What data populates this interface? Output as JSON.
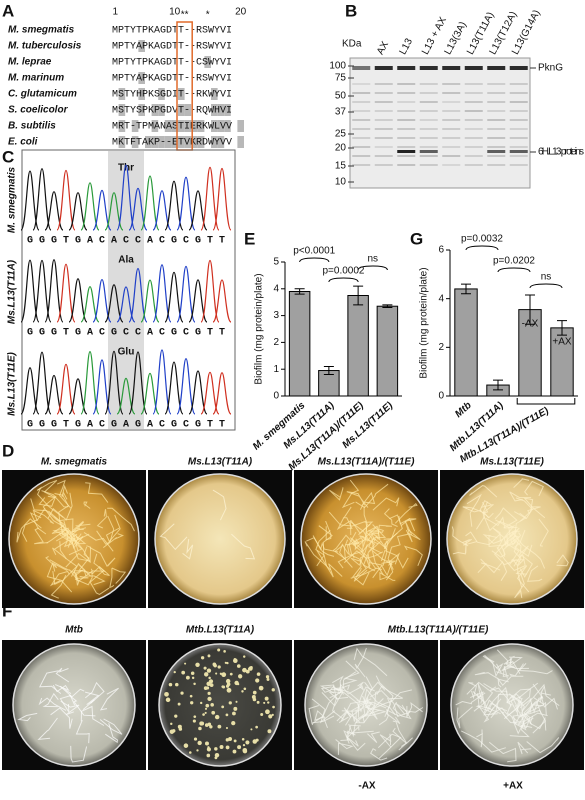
{
  "panel_labels": [
    "A",
    "B",
    "C",
    "D",
    "E",
    "F",
    "G"
  ],
  "alignment": {
    "positions": [
      "1",
      "10",
      "20"
    ],
    "stars": [
      "**",
      "*"
    ],
    "species": [
      "M. smegmatis",
      "M. tuberculosis",
      "M. leprae",
      "M. marinum",
      "C. glutamicum",
      "S. coelicolor",
      "B. subtilis",
      "E. coli"
    ],
    "sequences": [
      "MPTYTPKAGDTT--RSWYVI",
      "MPTYAPKAGDTT--RSWYVI",
      "MPTYTPKAGDTT--CSWYVI",
      "MPTYAPKAGDTT--RSWYVI",
      "MSTYHPKSGDIT--RKWYVI",
      "MSTYSPKPGDVT--RQWHVI",
      "MRT-TPMANASTIERKWLVV",
      "MKTFTAKP--ETVKRDWYVV"
    ]
  },
  "gel": {
    "unit": "KDa",
    "lanes": [
      "AX",
      "L13",
      "L13 + AX",
      "L13(3A)",
      "L13(T11A)",
      "L13(T12A)",
      "L13(G14A)"
    ],
    "markers": [
      "100",
      "75",
      "50",
      "37",
      "25",
      "20",
      "15",
      "10"
    ],
    "bands": [
      "PknG",
      "6H.L13 proteins"
    ]
  },
  "chromatograms": {
    "strains": [
      "M. smegmatis",
      "Ms.L13(T11A)",
      "Ms.L13(T11E)"
    ],
    "codons": [
      "Thr",
      "Ala",
      "Glu"
    ],
    "sequences": [
      "GGGTGACACCACGCGTT",
      "GGGTGACGCCACGCGTT",
      "GGGTGACGAGACGCGTT"
    ]
  },
  "plates_d": {
    "titles": [
      "M. smegmatis",
      "Ms.L13(T11A)",
      "Ms.L13(T11A)/(T11E)",
      "Ms.L13(T11E)"
    ]
  },
  "plates_f": {
    "titles": [
      "Mtb",
      "Mtb.L13(T11A)",
      "Mtb.L13(T11A)/(T11E)"
    ],
    "conditions": [
      "-AX",
      "+AX"
    ]
  },
  "chart_data": [
    {
      "type": "bar",
      "ylabel": "Biofilm (mg protein/plate)",
      "categories": [
        "M. smegmatis",
        "Ms.L13(T11A)",
        "Ms.L13(T11A)/(T11E)",
        "Ms.L13(T11E)"
      ],
      "values": [
        3.9,
        0.95,
        3.75,
        3.35
      ],
      "errors": [
        0.1,
        0.15,
        0.35,
        0.05
      ],
      "color": "#a0a0a0",
      "ylim": [
        0,
        5
      ],
      "yticks": [
        0,
        1,
        2,
        3,
        4,
        5
      ],
      "annotations": [
        "p<0.0001",
        "p=0.0002",
        "ns"
      ]
    },
    {
      "type": "bar",
      "ylabel": "Biofilm (mg protein/plate)",
      "categories": [
        "Mtb",
        "Mtb.L13(T11A)",
        "-AX",
        "+AX"
      ],
      "group_label": "Mtb.L13(T11A)/(T11E)",
      "values": [
        4.4,
        0.45,
        3.55,
        2.8
      ],
      "errors": [
        0.2,
        0.2,
        0.6,
        0.3
      ],
      "color": "#a0a0a0",
      "ylim": [
        0,
        6
      ],
      "yticks": [
        0,
        2,
        4,
        6
      ],
      "annotations": [
        "p=0.0032",
        "p=0.0202",
        "ns"
      ]
    }
  ]
}
